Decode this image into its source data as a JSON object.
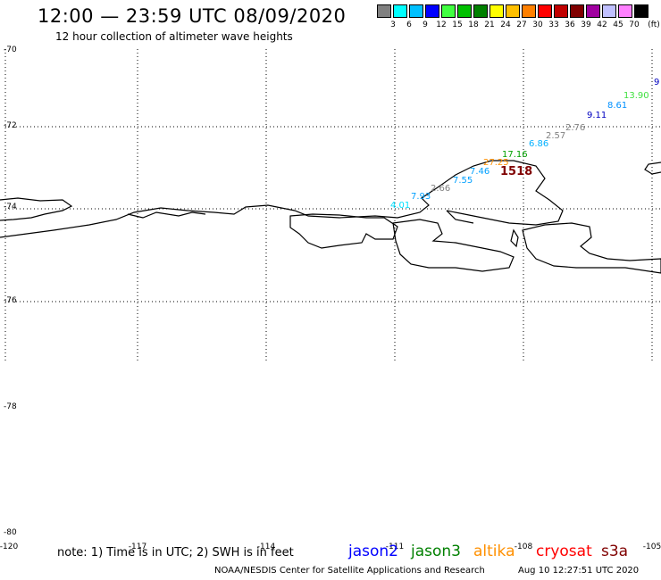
{
  "title": "12:00 — 23:59 UTC 08/09/2020",
  "subtitle": "12 hour collection of altimeter wave heights",
  "legend": {
    "unit": "(ft)",
    "colors": [
      "#808080",
      "#00ffff",
      "#00c0ff",
      "#0000ff",
      "#40ff40",
      "#00c000",
      "#008000",
      "#ffff00",
      "#ffc000",
      "#ff8000",
      "#ff0000",
      "#c00000",
      "#800000",
      "#a000a0",
      "#c0c0ff",
      "#ff80ff",
      "#000000"
    ],
    "labels": [
      "3",
      "6",
      "9",
      "12",
      "15",
      "18",
      "21",
      "24",
      "27",
      "30",
      "33",
      "36",
      "39",
      "42",
      "45",
      "70"
    ]
  },
  "y_axis": [
    "-70",
    "-72",
    "-74",
    "-76",
    "-78",
    "-80"
  ],
  "x_axis": [
    "-120",
    "-117",
    "-114",
    "-111",
    "-108",
    "-105"
  ],
  "wave_heights": [
    {
      "text": "9",
      "color": "#0000c0"
    },
    {
      "text": "13.90",
      "color": "#40e040"
    },
    {
      "text": "8.61",
      "color": "#0090ff"
    },
    {
      "text": "9.11",
      "color": "#0000c0"
    },
    {
      "text": "2.76",
      "color": "#808080"
    },
    {
      "text": "2.57",
      "color": "#808080"
    },
    {
      "text": "6.86",
      "color": "#00b0ff"
    },
    {
      "text": "17.16",
      "color": "#00a000"
    },
    {
      "text": "27.25",
      "color": "#ff9000"
    },
    {
      "text": "1518",
      "color": "#800000"
    },
    {
      "text": "7.46",
      "color": "#00a0ff"
    },
    {
      "text": "7.55",
      "color": "#00a0ff"
    },
    {
      "text": "2.66",
      "color": "#808080"
    },
    {
      "text": "7.93",
      "color": "#00a0ff"
    },
    {
      "text": "4.01",
      "color": "#00e0ff"
    }
  ],
  "note": "note: 1) Time is in UTC; 2) SWH is in feet",
  "satellites": [
    {
      "name": "jason2",
      "color": "#0000ff"
    },
    {
      "name": "jason3",
      "color": "#008000"
    },
    {
      "name": "altika",
      "color": "#ff9000"
    },
    {
      "name": "cryosat",
      "color": "#ff0000"
    },
    {
      "name": "s3a",
      "color": "#800000"
    }
  ],
  "footer": "NOAA/NESDIS Center for Satellite Applications and Research",
  "timestamp": "Aug 10 12:27:51 UTC 2020"
}
